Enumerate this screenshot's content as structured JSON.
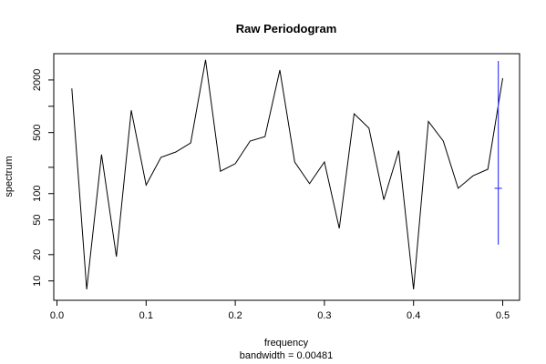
{
  "chart_data": {
    "type": "line",
    "title": "Raw Periodogram",
    "xlabel": "frequency",
    "sub_label": "bandwidth = 0.00481",
    "ylabel": "spectrum",
    "y_scale": "log",
    "xlim": [
      0,
      0.5
    ],
    "ylim": [
      6,
      4000
    ],
    "x_ticks": [
      0.0,
      0.1,
      0.2,
      0.3,
      0.4,
      0.5
    ],
    "x_tick_labels": [
      "0.0",
      "0.1",
      "0.2",
      "0.3",
      "0.4",
      "0.5"
    ],
    "y_ticks": [
      10,
      20,
      50,
      100,
      200,
      500,
      1000,
      2000
    ],
    "y_tick_labels": [
      "10",
      "20",
      "50",
      "100",
      "",
      "500",
      "",
      "2000"
    ],
    "x": [
      0.0167,
      0.0333,
      0.05,
      0.0667,
      0.0833,
      0.1,
      0.1167,
      0.1333,
      0.15,
      0.1667,
      0.1833,
      0.2,
      0.2167,
      0.2333,
      0.25,
      0.2667,
      0.2833,
      0.3,
      0.3167,
      0.3333,
      0.35,
      0.3667,
      0.3833,
      0.4,
      0.4167,
      0.4333,
      0.45,
      0.4667,
      0.4833,
      0.5
    ],
    "values": [
      1600,
      8,
      280,
      19,
      900,
      125,
      260,
      300,
      380,
      3400,
      180,
      220,
      400,
      450,
      2600,
      230,
      130,
      230,
      40,
      820,
      560,
      85,
      310,
      8,
      670,
      400,
      115,
      160,
      190,
      2100
    ],
    "ci_bar": {
      "x": 0.495,
      "center": 115,
      "lower": 26,
      "upper": 3300
    },
    "colors": {
      "line": "#000000",
      "ci_bar": "#4040ff",
      "axis": "#000000"
    },
    "grid": false,
    "legend": "none"
  }
}
